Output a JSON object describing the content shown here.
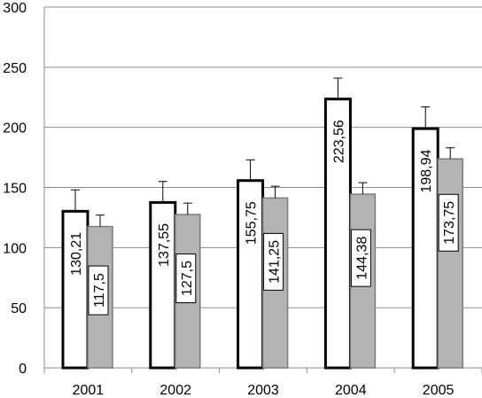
{
  "chart_data": {
    "type": "bar",
    "title": "",
    "xlabel": "",
    "ylabel": "",
    "ylim": [
      0,
      300
    ],
    "yticks": [
      0,
      50,
      100,
      150,
      200,
      250,
      300
    ],
    "grid": true,
    "legend": "none",
    "categories": [
      "2001",
      "2002",
      "2003",
      "2004",
      "2005"
    ],
    "series": [
      {
        "fill": "#ffffff",
        "stroke": "#000000",
        "values": [
          130.21,
          137.55,
          155.75,
          223.56,
          198.94
        ],
        "labels": [
          "130,21",
          "137,55",
          "155,75",
          "223,56",
          "198,94"
        ],
        "error_upper": [
          148,
          155,
          173,
          241,
          217
        ]
      },
      {
        "fill": "#b3b3b3",
        "stroke": "#7a7a7a",
        "values": [
          117.5,
          127.5,
          141.25,
          144.38,
          173.75
        ],
        "labels": [
          "117,5",
          "127,5",
          "141,25",
          "144,38",
          "173,75"
        ],
        "error_upper": [
          127,
          137,
          151,
          154,
          183
        ]
      }
    ]
  }
}
